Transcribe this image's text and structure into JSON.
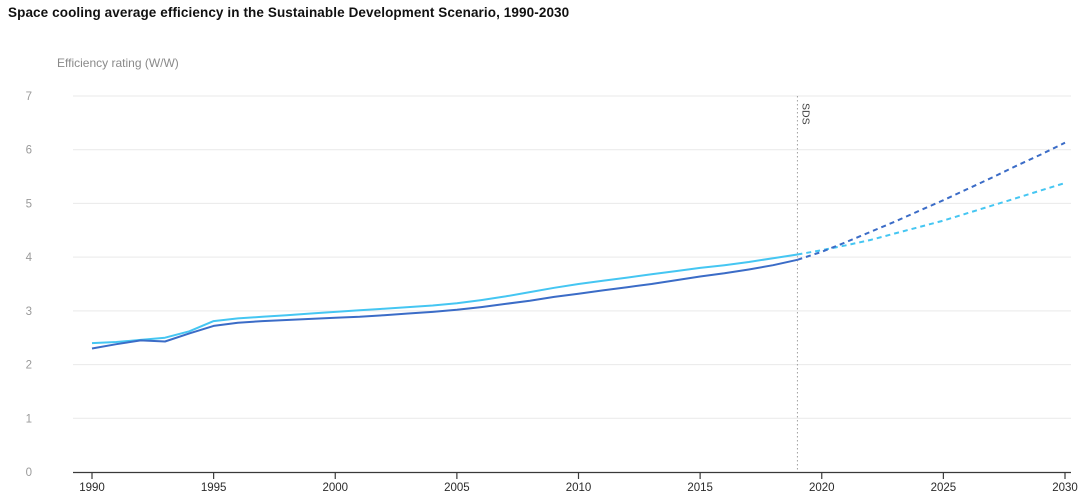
{
  "header": {
    "title": "Space cooling average efficiency in the Sustainable Development Scenario, 1990-2030"
  },
  "chart_data": {
    "type": "line",
    "title": "Space cooling average efficiency in the Sustainable Development Scenario, 1990-2030",
    "ylabel": "Efficiency rating (W/W)",
    "xlabel": "",
    "xlim": [
      1990,
      2030
    ],
    "ylim": [
      0,
      7
    ],
    "x_ticks": [
      1990,
      1995,
      2000,
      2005,
      2010,
      2015,
      2020,
      2025,
      2030
    ],
    "y_ticks": [
      0,
      1,
      2,
      3,
      4,
      5,
      6,
      7
    ],
    "grid": "horizontal-only",
    "legend": "none",
    "annotation": {
      "label": "SDS",
      "year": 2019,
      "style": "vertical-dotted-line",
      "color": "#a0a0a0",
      "label_color": "#3d3d3d"
    },
    "x": [
      1990,
      1991,
      1992,
      1993,
      1994,
      1995,
      1996,
      1997,
      1998,
      1999,
      2000,
      2001,
      2002,
      2003,
      2004,
      2005,
      2006,
      2007,
      2008,
      2009,
      2010,
      2011,
      2012,
      2013,
      2014,
      2015,
      2016,
      2017,
      2018,
      2019,
      2020,
      2021,
      2022,
      2023,
      2024,
      2025,
      2026,
      2027,
      2028,
      2029,
      2030
    ],
    "series": [
      {
        "name": "light-blue-efficiency-line",
        "color": "#45C6F2",
        "projection_start": 2019,
        "values": [
          2.4,
          2.42,
          2.46,
          2.5,
          2.62,
          2.81,
          2.86,
          2.89,
          2.92,
          2.95,
          2.98,
          3.01,
          3.04,
          3.07,
          3.1,
          3.14,
          3.2,
          3.27,
          3.35,
          3.43,
          3.5,
          3.56,
          3.62,
          3.68,
          3.74,
          3.8,
          3.85,
          3.91,
          3.98,
          4.05,
          4.13,
          4.22,
          4.32,
          4.44,
          4.56,
          4.68,
          4.82,
          4.96,
          5.1,
          5.24,
          5.38
        ]
      },
      {
        "name": "dark-blue-efficiency-line",
        "color": "#3B6CC7",
        "projection_start": 2019,
        "values": [
          2.3,
          2.38,
          2.45,
          2.43,
          2.58,
          2.72,
          2.78,
          2.81,
          2.83,
          2.85,
          2.87,
          2.89,
          2.92,
          2.95,
          2.98,
          3.02,
          3.07,
          3.13,
          3.19,
          3.26,
          3.32,
          3.38,
          3.44,
          3.5,
          3.57,
          3.64,
          3.7,
          3.77,
          3.85,
          3.95,
          4.1,
          4.28,
          4.47,
          4.66,
          4.86,
          5.06,
          5.27,
          5.48,
          5.7,
          5.91,
          6.13
        ]
      }
    ],
    "axis_colors": {
      "x_axis_line": "#3a3a3a",
      "x_tick_labels": "#2b2b2b",
      "y_tick_labels": "#9a9a9a",
      "gridline": "#e9e9e9"
    }
  }
}
